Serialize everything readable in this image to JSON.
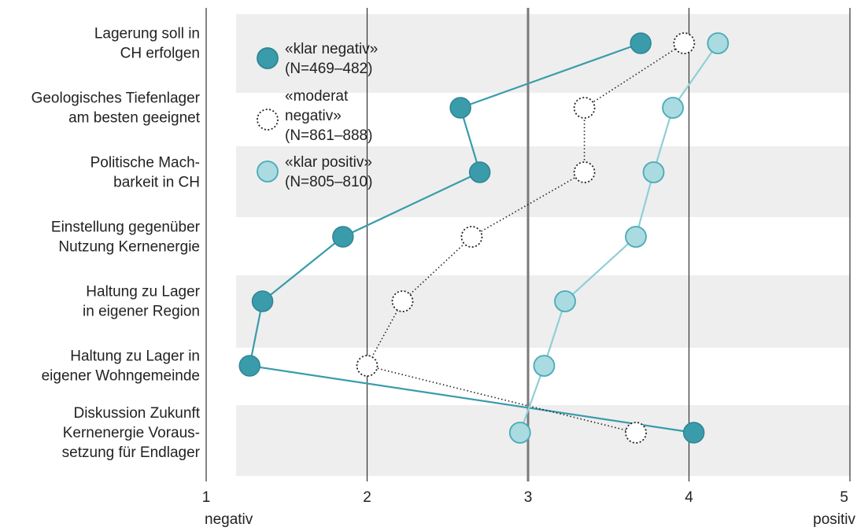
{
  "chart_data": {
    "type": "line",
    "orientation": "horizontal-values",
    "categories": [
      "Lagerung soll in CH erfolgen",
      "Geologisches Tiefenlager am besten geeignet",
      "Politische Machbarkeit in CH",
      "Einstellung gegenüber Nutzung Kernenergie",
      "Haltung zu Lager in eigener Region",
      "Haltung zu Lager in eigener Wohngemeinde",
      "Diskussion Zukunft Kernenergie Voraussetzung für Endlager"
    ],
    "category_lines": [
      [
        "Lagerung soll in",
        "CH erfolgen"
      ],
      [
        "Geologisches Tiefenlager",
        "am besten geeignet"
      ],
      [
        "Politische Mach-",
        "barkeit in CH"
      ],
      [
        "Einstellung gegenüber",
        "Nutzung Kernenergie"
      ],
      [
        "Haltung zu Lager",
        "in eigener Region"
      ],
      [
        "Haltung zu Lager in",
        "eigener Wohngemeinde"
      ],
      [
        "Diskussion Zukunft",
        "Kernenergie Voraus-",
        "setzung für Endlager"
      ]
    ],
    "series": [
      {
        "name": "«klar negativ» (N = 469–482)",
        "legend_lines": [
          "«klar negativ»",
          "(N=469–482)"
        ],
        "marker": "filled-dark",
        "color": "#3a9cab",
        "values": [
          3.7,
          2.58,
          2.7,
          1.85,
          1.35,
          1.27,
          4.03
        ]
      },
      {
        "name": "«moderat negativ» (N = 861–888)",
        "legend_lines": [
          "«moderat",
          "negativ»",
          "(N=861–888)"
        ],
        "marker": "open-dotted",
        "color": "#222222",
        "values": [
          3.97,
          3.35,
          3.35,
          2.65,
          2.22,
          2.0,
          3.67
        ]
      },
      {
        "name": "«klar positiv» (N = 805–810)",
        "legend_lines": [
          "«klar positiv»",
          "(N=805–810)"
        ],
        "marker": "filled-light",
        "color": "#8fcfd6",
        "values": [
          4.18,
          3.9,
          3.78,
          3.67,
          3.23,
          3.1,
          2.95
        ]
      }
    ],
    "xlim": [
      1,
      5
    ],
    "ticks": [
      "1",
      "2",
      "3",
      "4",
      "5"
    ],
    "axis_end_labels": {
      "low": "negativ",
      "high": "positiv"
    },
    "grid": true,
    "legend_position": "top-left"
  }
}
